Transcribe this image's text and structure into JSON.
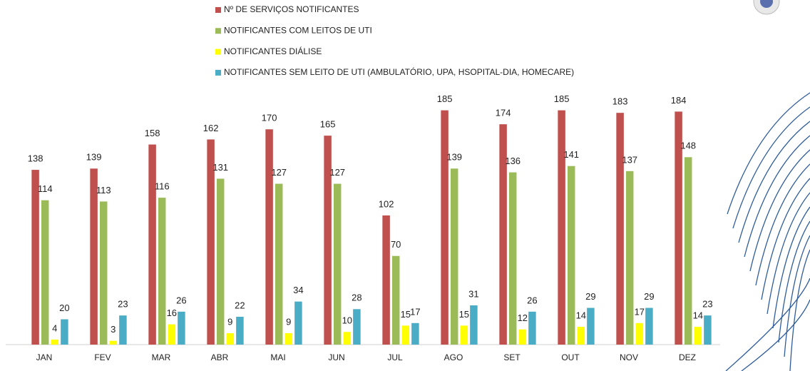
{
  "chart_data": {
    "type": "bar",
    "categories": [
      "JAN",
      "FEV",
      "MAR",
      "ABR",
      "MAI",
      "JUN",
      "JUL",
      "AGO",
      "SET",
      "OUT",
      "NOV",
      "DEZ"
    ],
    "series": [
      {
        "name": "Nº DE SERVIÇOS NOTIFICANTES",
        "color": "#c0504d",
        "values": [
          138,
          139,
          158,
          162,
          170,
          165,
          102,
          185,
          174,
          185,
          183,
          184
        ]
      },
      {
        "name": "NOTIFICANTES COM LEITOS DE UTI",
        "color": "#9bbb59",
        "values": [
          114,
          113,
          116,
          131,
          127,
          127,
          70,
          139,
          136,
          141,
          137,
          148
        ]
      },
      {
        "name": "NOTIFICANTES DIÁLISE",
        "color": "#ffff00",
        "values": [
          4,
          3,
          16,
          9,
          9,
          10,
          15,
          15,
          12,
          14,
          17,
          14
        ]
      },
      {
        "name": "NOTIFICANTES SEM LEITO DE UTI (AMBULATÓRIO, UPA, HSOPITAL-DIA, HOMECARE)",
        "color": "#4bacc6",
        "values": [
          20,
          23,
          26,
          22,
          34,
          28,
          17,
          31,
          26,
          29,
          29,
          23
        ]
      }
    ],
    "ylim": [
      0,
      200
    ]
  }
}
